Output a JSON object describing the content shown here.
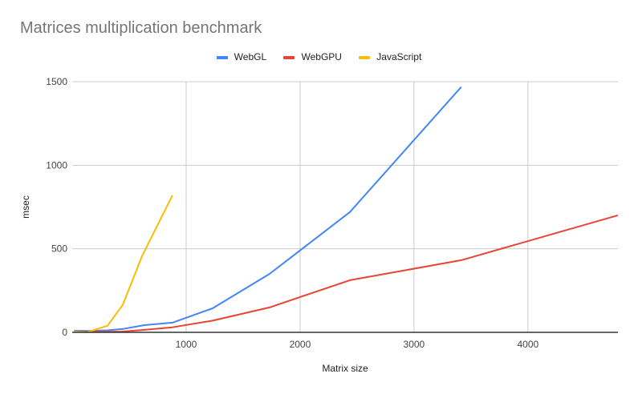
{
  "chart_data": {
    "type": "line",
    "title": "Matrices multiplication benchmark",
    "xlabel": "Matrix size",
    "ylabel": "msec",
    "xlim": [
      0,
      4790
    ],
    "ylim": [
      0,
      1500
    ],
    "xticks": [
      1000,
      2000,
      3000,
      4000
    ],
    "xtick_labels": [
      "1000",
      "2000",
      "3000",
      "4000"
    ],
    "yticks": [
      0,
      500,
      1000,
      1500
    ],
    "ytick_labels": [
      "0",
      "500",
      "1000",
      "1500"
    ],
    "grid": true,
    "legend_position": "top",
    "series": [
      {
        "name": "WebGL",
        "color": "#4285f4",
        "x": [
          16,
          128,
          310,
          444,
          634,
          880,
          1232,
          1732,
          2437,
          3415
        ],
        "y": [
          10,
          8,
          12,
          20,
          43,
          58,
          144,
          350,
          720,
          1469
        ]
      },
      {
        "name": "WebGPU",
        "color": "#ea4335",
        "x": [
          16,
          128,
          310,
          444,
          634,
          880,
          1232,
          1732,
          2437,
          3415,
          4789
        ],
        "y": [
          4,
          3,
          4,
          5,
          15,
          30,
          70,
          149,
          312,
          432,
          700
        ]
      },
      {
        "name": "JavaScript",
        "color": "#fbbc04",
        "x": [
          16,
          128,
          310,
          444,
          613,
          880
        ],
        "y": [
          5,
          0,
          40,
          165,
          456,
          820
        ]
      }
    ]
  }
}
